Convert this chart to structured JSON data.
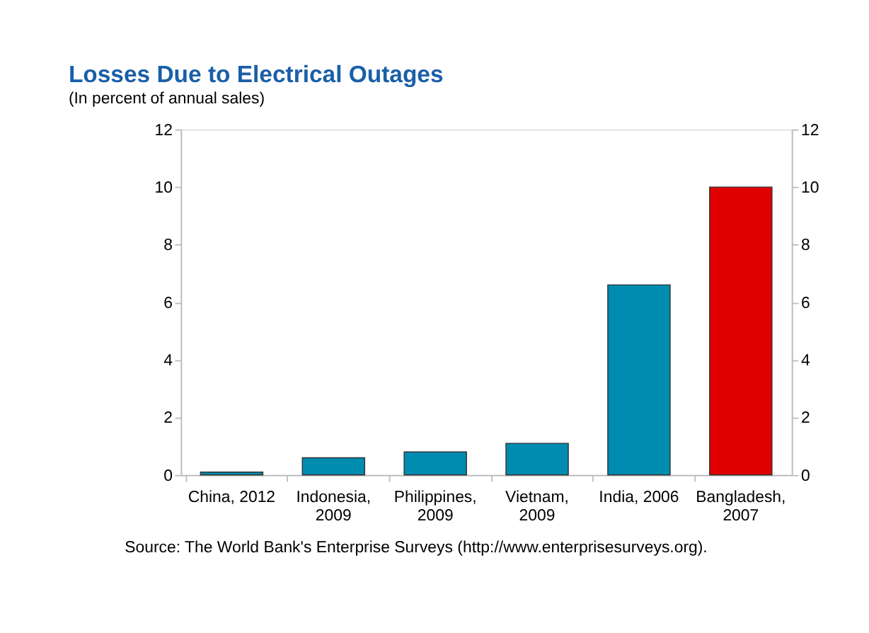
{
  "chart_data": {
    "type": "bar",
    "title": "Losses Due to Electrical Outages",
    "subtitle": "(In percent of annual sales)",
    "categories": [
      "China, 2012",
      "Indonesia, 2009",
      "Philippines, 2009",
      "Vietnam, 2009",
      "India, 2006",
      "Bangladesh, 2007"
    ],
    "values": [
      0.1,
      0.6,
      0.8,
      1.1,
      6.6,
      10.0
    ],
    "colors": [
      "#008bb0",
      "#008bb0",
      "#008bb0",
      "#008bb0",
      "#008bb0",
      "#e00000"
    ],
    "ylim": [
      0,
      12
    ],
    "yticks": [
      0,
      2,
      4,
      6,
      8,
      10,
      12
    ],
    "y2lim": [
      0,
      12
    ],
    "y2ticks": [
      0,
      2,
      4,
      6,
      8,
      10,
      12
    ],
    "grid": false,
    "annotations": [
      "Source: The World Bank's Enterprise Surveys (http://www.enterprisesurveys.org)."
    ]
  }
}
